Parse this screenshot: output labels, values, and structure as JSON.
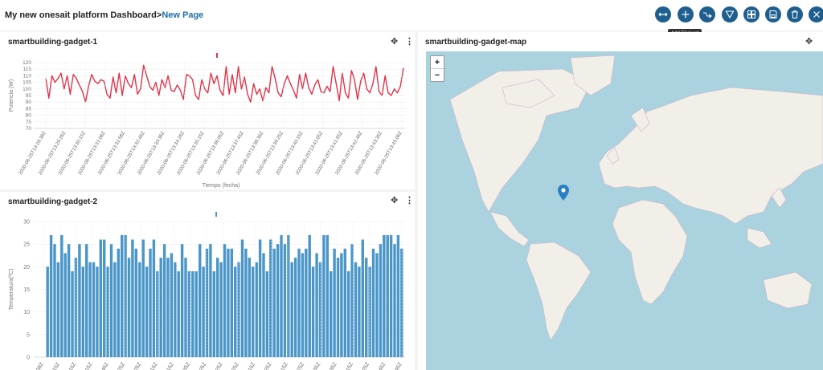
{
  "header": {
    "dashboard_title": "My new onesait platform Dashboard",
    "separator": ">",
    "page_name": "New Page"
  },
  "toolbar": {
    "tooltip": "Add Element",
    "buttons": [
      {
        "name": "expand-icon",
        "glyph": "↔"
      },
      {
        "name": "add-icon",
        "glyph": "+"
      },
      {
        "name": "connections-icon",
        "glyph": "⚯"
      },
      {
        "name": "filter-icon",
        "glyph": "▽"
      },
      {
        "name": "layout-icon",
        "glyph": "⊞"
      },
      {
        "name": "save-icon",
        "glyph": "💾"
      },
      {
        "name": "delete-icon",
        "glyph": "🗑"
      },
      {
        "name": "close-icon",
        "glyph": "✕"
      }
    ]
  },
  "gadgets": {
    "line": {
      "title": "smartbuilding-gadget-1"
    },
    "bar": {
      "title": "smartbuilding-gadget-2"
    },
    "map": {
      "title": "smartbuilding-gadget-map"
    }
  },
  "map": {
    "zoom_in": "+",
    "zoom_out": "−"
  },
  "colors": {
    "line": "#e0344a",
    "bar": "#4a96c8",
    "accent": "#1e5f8f",
    "map_water": "#aad3df",
    "map_land": "#f2efe9"
  },
  "chart_data": [
    {
      "type": "line",
      "ylabel": "Potencia (W)",
      "xlabel": "Tiempo (fecha)",
      "ylim": [
        70,
        120
      ],
      "yticks": [
        70,
        75,
        80,
        85,
        90,
        95,
        100,
        105,
        110,
        115,
        120
      ],
      "xtick_labels": [
        "2020-06-25T13:28:38Z",
        "2020-06-25T13:29:26Z",
        "2020-06-25T13:30:15Z",
        "2020-06-25T13:31:08Z",
        "2020-06-25T13:31:58Z",
        "2020-06-25T13:32:46Z",
        "2020-06-25T13:33:36Z",
        "2020-06-25T13:34:26Z",
        "2020-06-25T13:35:15Z",
        "2020-06-25T13:36:05Z",
        "2020-06-25T13:37:45Z",
        "2020-06-25T13:38:36Z",
        "2020-06-25T13:39:25Z",
        "2020-06-25T13:40:15Z",
        "2020-06-25T13:41:05Z",
        "2020-06-25T13:41:55Z",
        "2020-06-25T13:42:46Z",
        "2020-06-25T13:43:35Z",
        "2020-06-25T13:45:06Z"
      ],
      "values": [
        108,
        93,
        110,
        105,
        108,
        112,
        100,
        110,
        96,
        111,
        108,
        103,
        98,
        90,
        102,
        111,
        106,
        104,
        107,
        106,
        96,
        93,
        109,
        97,
        112,
        95,
        110,
        104,
        101,
        111,
        96,
        100,
        118,
        110,
        102,
        99,
        105,
        95,
        107,
        101,
        110,
        99,
        98,
        103,
        99,
        92,
        111,
        110,
        107,
        95,
        92,
        107,
        100,
        97,
        112,
        104,
        110,
        99,
        95,
        117,
        96,
        111,
        97,
        117,
        100,
        109,
        96,
        90,
        104,
        96,
        100,
        91,
        101,
        97,
        117,
        108,
        97,
        94,
        104,
        110,
        104,
        99,
        93,
        111,
        100,
        112,
        101,
        96,
        103,
        107,
        98,
        97,
        102,
        98,
        117,
        104,
        91,
        112,
        97,
        93,
        114,
        107,
        92,
        106,
        112,
        100,
        97,
        104,
        117,
        98,
        95,
        110,
        97,
        95,
        100,
        97,
        102,
        116
      ]
    },
    {
      "type": "bar",
      "ylabel": "Temperatura(ºC)",
      "ylim": [
        0,
        30
      ],
      "yticks": [
        0,
        5,
        10,
        15,
        20,
        25,
        30
      ],
      "xtick_labels": [
        ":38Z",
        "15Z",
        "15Z",
        "15Z",
        "46Z",
        "25Z",
        "25Z",
        "15Z",
        "15Z",
        "35Z",
        "25Z",
        "25Z",
        "25Z",
        "15Z",
        "25Z",
        "15Z",
        "25Z",
        "35Z",
        "35Z",
        "15Z",
        "25Z",
        "45Z",
        "45Z"
      ],
      "values": [
        20,
        27,
        25,
        21,
        27,
        23,
        25,
        19,
        22,
        25,
        20,
        25,
        21,
        21,
        20,
        26,
        26,
        20,
        25,
        21,
        24,
        27,
        27,
        22,
        26,
        24,
        21,
        26,
        20,
        24,
        26,
        19,
        22,
        25,
        22,
        23,
        21,
        19,
        25,
        22,
        19,
        19,
        19,
        25,
        20,
        24,
        25,
        19,
        22,
        21,
        25,
        24,
        24,
        20,
        21,
        26,
        24,
        22,
        20,
        21,
        26,
        23,
        19,
        26,
        24,
        25,
        27,
        25,
        27,
        21,
        22,
        24,
        23,
        24,
        27,
        20,
        23,
        21,
        27,
        27,
        19,
        24,
        22,
        23,
        24,
        19,
        25,
        21,
        20,
        26,
        22,
        20,
        24,
        23,
        25,
        27,
        27,
        27,
        25,
        27,
        24
      ]
    }
  ]
}
